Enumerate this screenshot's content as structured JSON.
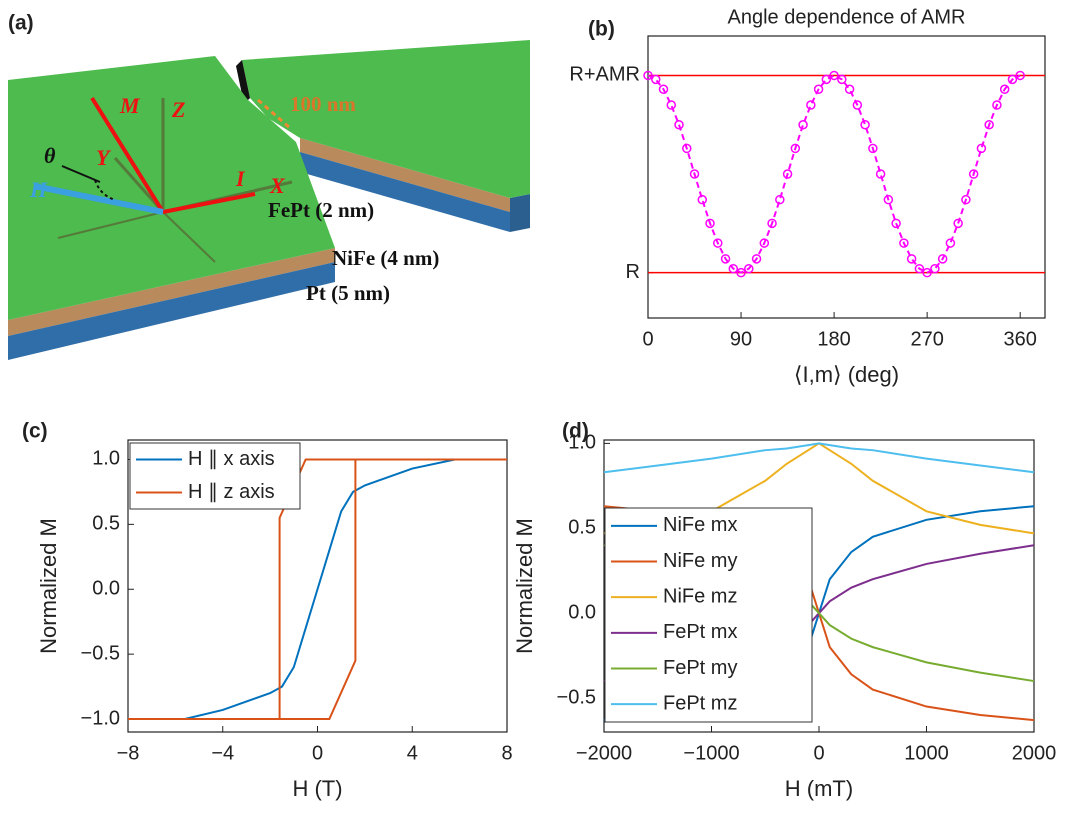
{
  "panel_a": {
    "label": "(a)",
    "vectors": [
      "M",
      "Z",
      "Y",
      "θ",
      "I",
      "X",
      "H"
    ],
    "gap": "100 nm",
    "layers": [
      "FePt (2 nm)",
      "NiFe (4 nm)",
      "Pt (5 nm)"
    ]
  },
  "chart_data": [
    {
      "type": "line",
      "panel": "(b)",
      "title": "Angle dependence of AMR",
      "xlabel": "⟨I,m⟩ (deg)",
      "x": [
        0,
        7.5,
        15,
        22.5,
        30,
        37.5,
        45,
        52.5,
        60,
        67.5,
        75,
        82.5,
        90,
        97.5,
        105,
        112.5,
        120,
        127.5,
        135,
        142.5,
        150,
        157.5,
        165,
        172.5,
        180,
        187.5,
        195,
        202.5,
        210,
        217.5,
        225,
        232.5,
        240,
        247.5,
        255,
        262.5,
        270,
        277.5,
        285,
        292.5,
        300,
        307.5,
        315,
        322.5,
        330,
        337.5,
        345,
        352.5,
        360
      ],
      "series": [
        {
          "color": "#ff00ff",
          "marker": "circle",
          "dashed": true,
          "values": [
            1,
            0.98,
            0.93,
            0.85,
            0.75,
            0.63,
            0.5,
            0.37,
            0.25,
            0.15,
            0.07,
            0.02,
            0,
            0.02,
            0.07,
            0.15,
            0.25,
            0.37,
            0.5,
            0.63,
            0.75,
            0.85,
            0.93,
            0.98,
            1,
            0.98,
            0.93,
            0.85,
            0.75,
            0.63,
            0.5,
            0.37,
            0.25,
            0.15,
            0.07,
            0.02,
            0,
            0.02,
            0.07,
            0.15,
            0.25,
            0.37,
            0.5,
            0.63,
            0.75,
            0.85,
            0.93,
            0.98,
            1
          ]
        }
      ],
      "hlines": [
        {
          "value": 0,
          "color": "#ff0000"
        },
        {
          "value": 1,
          "color": "#ff0000"
        }
      ],
      "xlim": [
        0,
        384
      ],
      "xticks": [
        0,
        90,
        180,
        270,
        360
      ],
      "ylim": [
        -0.23,
        1.2
      ],
      "yticks": [
        {
          "value": 0,
          "label": "R"
        },
        {
          "value": 1,
          "label": "R+AMR"
        }
      ]
    },
    {
      "type": "line",
      "panel": "(c)",
      "xlabel": "H (T)",
      "ylabel": "Normalized M",
      "legend": "upper left",
      "series": [
        {
          "name": "H ∥ x axis",
          "color": "#0072bd",
          "x": [
            -8,
            -5.6,
            -4,
            -2,
            -1.5,
            -1,
            -0.5,
            0,
            0.5,
            1,
            1.5,
            2,
            4,
            5.8,
            8
          ],
          "values": [
            -1,
            -1,
            -0.93,
            -0.8,
            -0.75,
            -0.6,
            -0.3,
            0,
            0.3,
            0.6,
            0.75,
            0.8,
            0.93,
            1,
            1
          ]
        },
        {
          "name": "H ∥ z axis",
          "color": "#d95319",
          "x": [
            -8,
            0.5,
            1.6,
            1.6,
            8,
            -0.5,
            -1.6,
            -1.6
          ],
          "values": [
            -1,
            -1,
            -0.55,
            1,
            1,
            1,
            0.55,
            -1
          ]
        }
      ],
      "xlim": [
        -8,
        8
      ],
      "xticks": [
        {
          "value": -8,
          "label": "−8"
        },
        {
          "value": -4,
          "label": "−4"
        },
        0,
        4,
        8
      ],
      "ylim": [
        -1.1,
        1.15
      ],
      "yticks": [
        {
          "value": -1,
          "label": "−1.0"
        },
        {
          "value": -0.5,
          "label": "−0.5"
        },
        {
          "value": 0,
          "label": "0.0"
        },
        0.5,
        {
          "value": 1,
          "label": "1.0"
        }
      ]
    },
    {
      "type": "line",
      "panel": "(d)",
      "xlabel": "H (mT)",
      "ylabel": "Normalized M",
      "legend": "left",
      "x": [
        -2000,
        -1500,
        -1000,
        -500,
        -300,
        -100,
        0,
        100,
        300,
        500,
        1000,
        1500,
        2000
      ],
      "series": [
        {
          "name": "NiFe mx",
          "color": "#0072bd",
          "values": [
            -0.63,
            -0.6,
            -0.55,
            -0.45,
            -0.36,
            -0.2,
            0,
            0.2,
            0.36,
            0.45,
            0.55,
            0.6,
            0.63
          ]
        },
        {
          "name": "NiFe my",
          "color": "#d95319",
          "values": [
            0.63,
            0.6,
            0.55,
            0.45,
            0.36,
            0.2,
            0,
            -0.2,
            -0.36,
            -0.45,
            -0.55,
            -0.6,
            -0.63
          ]
        },
        {
          "name": "NiFe mz",
          "color": "#edb120",
          "values": [
            0.47,
            0.52,
            0.6,
            0.78,
            0.88,
            0.96,
            1,
            0.96,
            0.88,
            0.78,
            0.6,
            0.52,
            0.47
          ]
        },
        {
          "name": "FePt mx",
          "color": "#7e2f8e",
          "values": [
            -0.4,
            -0.35,
            -0.29,
            -0.2,
            -0.15,
            -0.07,
            0,
            0.07,
            0.15,
            0.2,
            0.29,
            0.35,
            0.4
          ]
        },
        {
          "name": "FePt my",
          "color": "#77ac30",
          "values": [
            0.4,
            0.35,
            0.29,
            0.2,
            0.15,
            0.07,
            0,
            -0.07,
            -0.15,
            -0.2,
            -0.29,
            -0.35,
            -0.4
          ]
        },
        {
          "name": "FePt mz",
          "color": "#4dbeee",
          "values": [
            0.83,
            0.87,
            0.91,
            0.96,
            0.97,
            0.99,
            1,
            0.99,
            0.97,
            0.96,
            0.91,
            0.87,
            0.83
          ]
        }
      ],
      "xlim": [
        -2000,
        2000
      ],
      "xticks": [
        {
          "value": -2000,
          "label": "−2000"
        },
        {
          "value": -1000,
          "label": "−1000"
        },
        0,
        1000,
        2000
      ],
      "ylim": [
        -0.7,
        1.02
      ],
      "yticks": [
        {
          "value": -0.5,
          "label": "−0.5"
        },
        {
          "value": 0,
          "label": "0.0"
        },
        0.5,
        {
          "value": 1,
          "label": "1.0"
        }
      ]
    }
  ]
}
